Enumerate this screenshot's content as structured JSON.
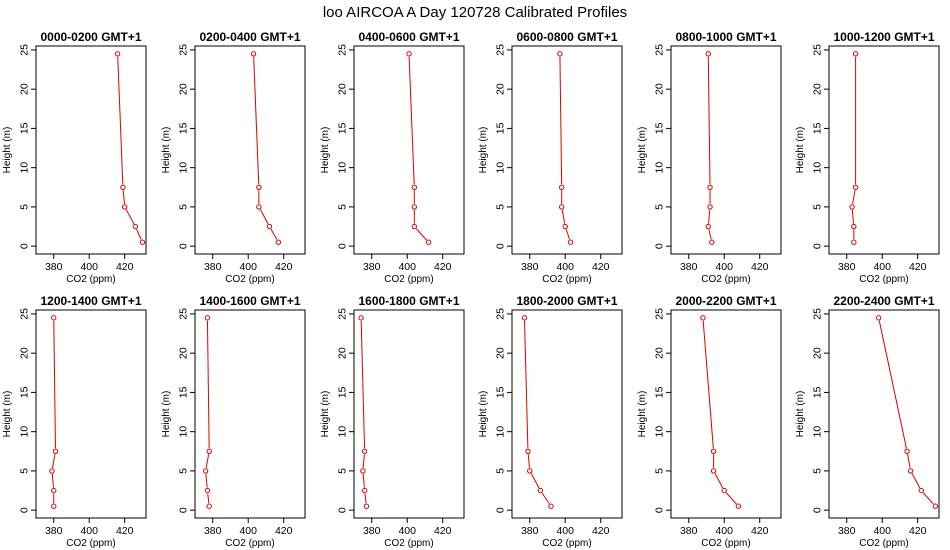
{
  "title": "loo AIRCOA A  Day 120728  Calibrated Profiles",
  "chart_data": [
    {
      "type": "line",
      "title": "0000-0200 GMT+1",
      "xlabel": "CO2 (ppm)",
      "ylabel": "Height (m)",
      "xlim": [
        370,
        432
      ],
      "ylim": [
        -1,
        25.5
      ],
      "xticks": [
        380,
        400,
        420
      ],
      "yticks": [
        0,
        5,
        10,
        15,
        20,
        25
      ],
      "grid": false,
      "series": [
        {
          "x": [
            430,
            426,
            420,
            419,
            416
          ],
          "y": [
            0.5,
            2.5,
            5,
            7.5,
            24.5
          ],
          "color": "#e00000"
        }
      ]
    },
    {
      "type": "line",
      "title": "0200-0400 GMT+1",
      "xlabel": "CO2 (ppm)",
      "ylabel": "Height (m)",
      "xlim": [
        370,
        432
      ],
      "ylim": [
        -1,
        25.5
      ],
      "xticks": [
        380,
        400,
        420
      ],
      "yticks": [
        0,
        5,
        10,
        15,
        20,
        25
      ],
      "grid": false,
      "series": [
        {
          "x": [
            417,
            412,
            406,
            406,
            403
          ],
          "y": [
            0.5,
            2.5,
            5,
            7.5,
            24.5
          ],
          "color": "#e00000"
        }
      ]
    },
    {
      "type": "line",
      "title": "0400-0600 GMT+1",
      "xlabel": "CO2 (ppm)",
      "ylabel": "Height (m)",
      "xlim": [
        370,
        432
      ],
      "ylim": [
        -1,
        25.5
      ],
      "xticks": [
        380,
        400,
        420
      ],
      "yticks": [
        0,
        5,
        10,
        15,
        20,
        25
      ],
      "grid": false,
      "series": [
        {
          "x": [
            412,
            404,
            404,
            404,
            401
          ],
          "y": [
            0.5,
            2.5,
            5,
            7.5,
            24.5
          ],
          "color": "#e00000"
        }
      ]
    },
    {
      "type": "line",
      "title": "0600-0800 GMT+1",
      "xlabel": "CO2 (ppm)",
      "ylabel": "Height (m)",
      "xlim": [
        370,
        432
      ],
      "ylim": [
        -1,
        25.5
      ],
      "xticks": [
        380,
        400,
        420
      ],
      "yticks": [
        0,
        5,
        10,
        15,
        20,
        25
      ],
      "grid": false,
      "series": [
        {
          "x": [
            403,
            400,
            398,
            398,
            397
          ],
          "y": [
            0.5,
            2.5,
            5,
            7.5,
            24.5
          ],
          "color": "#e00000"
        }
      ]
    },
    {
      "type": "line",
      "title": "0800-1000 GMT+1",
      "xlabel": "CO2 (ppm)",
      "ylabel": "Height (m)",
      "xlim": [
        370,
        432
      ],
      "ylim": [
        -1,
        25.5
      ],
      "xticks": [
        380,
        400,
        420
      ],
      "yticks": [
        0,
        5,
        10,
        15,
        20,
        25
      ],
      "grid": false,
      "series": [
        {
          "x": [
            393,
            391,
            392,
            392,
            391
          ],
          "y": [
            0.5,
            2.5,
            5,
            7.5,
            24.5
          ],
          "color": "#e00000"
        }
      ]
    },
    {
      "type": "line",
      "title": "1000-1200 GMT+1",
      "xlabel": "CO2 (ppm)",
      "ylabel": "Height (m)",
      "xlim": [
        370,
        432
      ],
      "ylim": [
        -1,
        25.5
      ],
      "xticks": [
        380,
        400,
        420
      ],
      "yticks": [
        0,
        5,
        10,
        15,
        20,
        25
      ],
      "grid": false,
      "series": [
        {
          "x": [
            384,
            384,
            383,
            385,
            385
          ],
          "y": [
            0.5,
            2.5,
            5,
            7.5,
            24.5
          ],
          "color": "#e00000"
        }
      ]
    },
    {
      "type": "line",
      "title": "1200-1400 GMT+1",
      "xlabel": "CO2 (ppm)",
      "ylabel": "Height (m)",
      "xlim": [
        370,
        432
      ],
      "ylim": [
        -1,
        25.5
      ],
      "xticks": [
        380,
        400,
        420
      ],
      "yticks": [
        0,
        5,
        10,
        15,
        20,
        25
      ],
      "grid": false,
      "series": [
        {
          "x": [
            380,
            380,
            379,
            381,
            380
          ],
          "y": [
            0.5,
            2.5,
            5,
            7.5,
            24.5
          ],
          "color": "#e00000"
        }
      ]
    },
    {
      "type": "line",
      "title": "1400-1600 GMT+1",
      "xlabel": "CO2 (ppm)",
      "ylabel": "Height (m)",
      "xlim": [
        370,
        432
      ],
      "ylim": [
        -1,
        25.5
      ],
      "xticks": [
        380,
        400,
        420
      ],
      "yticks": [
        0,
        5,
        10,
        15,
        20,
        25
      ],
      "grid": false,
      "series": [
        {
          "x": [
            378,
            377,
            376,
            378,
            377
          ],
          "y": [
            0.5,
            2.5,
            5,
            7.5,
            24.5
          ],
          "color": "#e00000"
        }
      ]
    },
    {
      "type": "line",
      "title": "1600-1800 GMT+1",
      "xlabel": "CO2 (ppm)",
      "ylabel": "Height (m)",
      "xlim": [
        370,
        432
      ],
      "ylim": [
        -1,
        25.5
      ],
      "xticks": [
        380,
        400,
        420
      ],
      "yticks": [
        0,
        5,
        10,
        15,
        20,
        25
      ],
      "grid": false,
      "series": [
        {
          "x": [
            377,
            376,
            375,
            376,
            374
          ],
          "y": [
            0.5,
            2.5,
            5,
            7.5,
            24.5
          ],
          "color": "#e00000"
        }
      ]
    },
    {
      "type": "line",
      "title": "1800-2000 GMT+1",
      "xlabel": "CO2 (ppm)",
      "ylabel": "Height (m)",
      "xlim": [
        370,
        432
      ],
      "ylim": [
        -1,
        25.5
      ],
      "xticks": [
        380,
        400,
        420
      ],
      "yticks": [
        0,
        5,
        10,
        15,
        20,
        25
      ],
      "grid": false,
      "series": [
        {
          "x": [
            392,
            386,
            380,
            379,
            377
          ],
          "y": [
            0.5,
            2.5,
            5,
            7.5,
            24.5
          ],
          "color": "#e00000"
        }
      ]
    },
    {
      "type": "line",
      "title": "2000-2200 GMT+1",
      "xlabel": "CO2 (ppm)",
      "ylabel": "Height (m)",
      "xlim": [
        370,
        432
      ],
      "ylim": [
        -1,
        25.5
      ],
      "xticks": [
        380,
        400,
        420
      ],
      "yticks": [
        0,
        5,
        10,
        15,
        20,
        25
      ],
      "grid": false,
      "series": [
        {
          "x": [
            408,
            400,
            394,
            394,
            388
          ],
          "y": [
            0.5,
            2.5,
            5,
            7.5,
            24.5
          ],
          "color": "#e00000"
        }
      ]
    },
    {
      "type": "line",
      "title": "2200-2400 GMT+1",
      "xlabel": "CO2 (ppm)",
      "ylabel": "Height (m)",
      "xlim": [
        370,
        432
      ],
      "ylim": [
        -1,
        25.5
      ],
      "xticks": [
        380,
        400,
        420
      ],
      "yticks": [
        0,
        5,
        10,
        15,
        20,
        25
      ],
      "grid": false,
      "series": [
        {
          "x": [
            430,
            422,
            416,
            414,
            398
          ],
          "y": [
            0.5,
            2.5,
            5,
            7.5,
            24.5
          ],
          "color": "#e00000"
        }
      ]
    }
  ]
}
